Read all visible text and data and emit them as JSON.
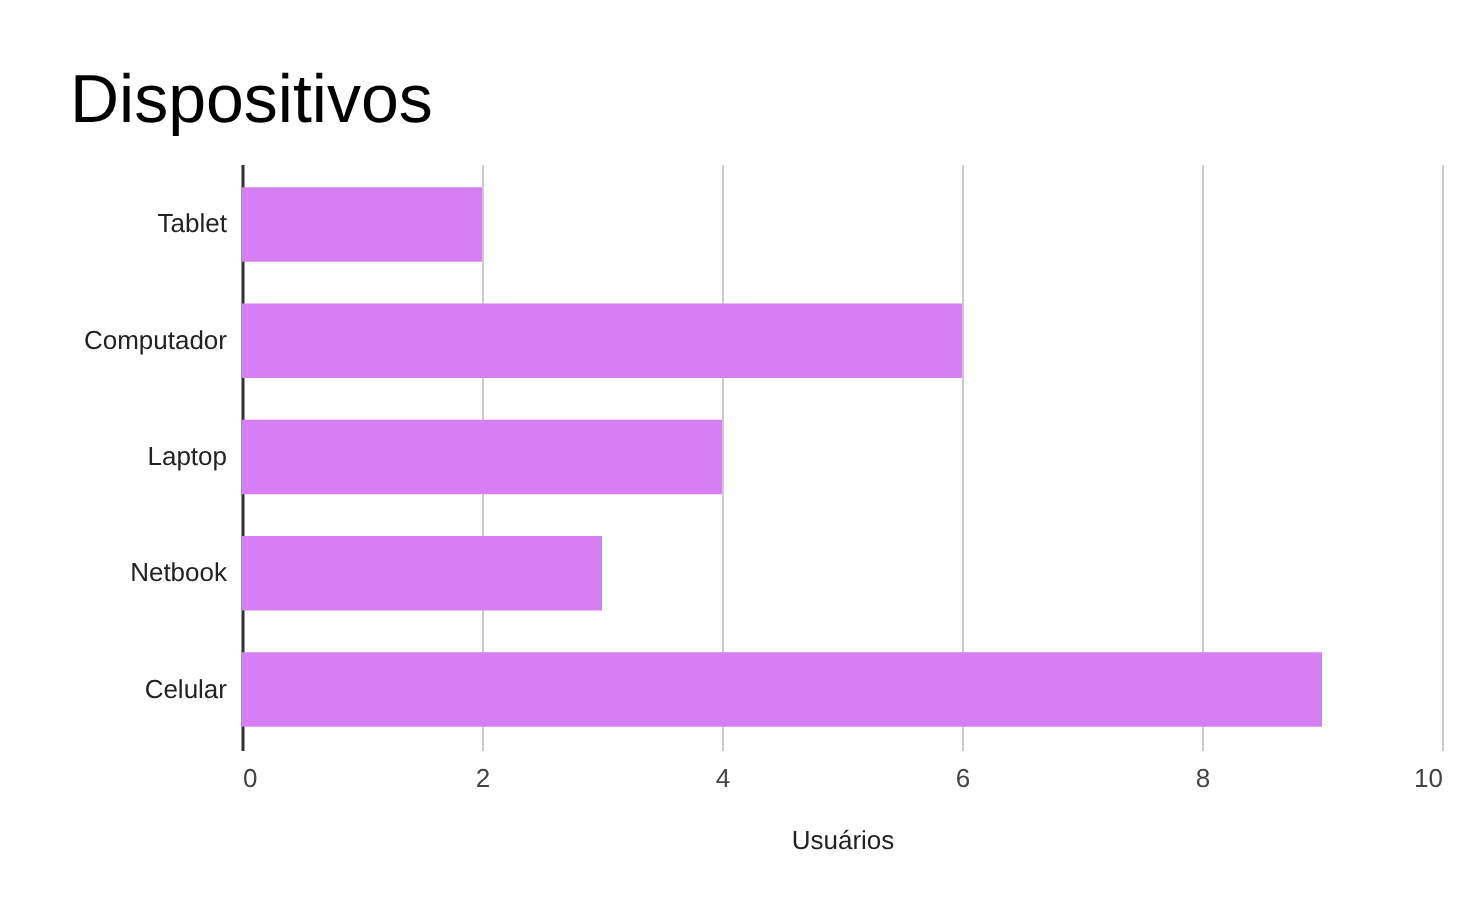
{
  "chart_data": {
    "type": "bar",
    "orientation": "horizontal",
    "title": "Dispositivos",
    "xlabel": "Usuários",
    "categories": [
      "Tablet",
      "Computador",
      "Laptop",
      "Netbook",
      "Celular"
    ],
    "values": [
      2,
      6,
      4,
      3,
      9
    ],
    "color": "#d67ff5",
    "xlim": [
      0,
      10
    ],
    "xticks": [
      0,
      2,
      4,
      6,
      8,
      10
    ],
    "grid": "x"
  }
}
